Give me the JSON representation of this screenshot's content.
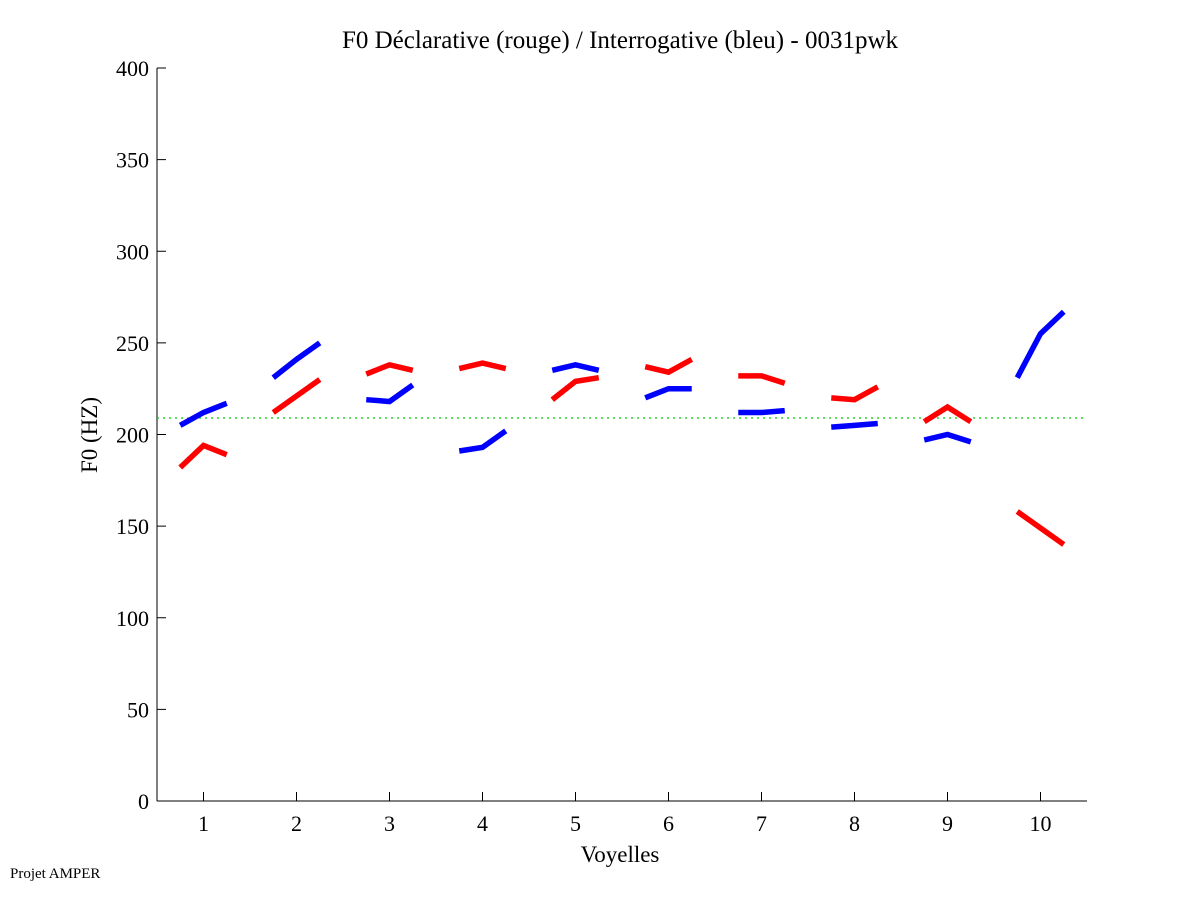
{
  "chart_data": {
    "type": "line",
    "title": "F0 Déclarative (rouge) / Interrogative (bleu) - 0031pwk",
    "xlabel": "Voyelles",
    "ylabel": "F0 (HZ)",
    "xlim": [
      0.5,
      10.5
    ],
    "ylim": [
      0,
      400
    ],
    "xticks": [
      "1",
      "2",
      "3",
      "4",
      "5",
      "6",
      "7",
      "8",
      "9",
      "10"
    ],
    "yticks": [
      "0",
      "50",
      "100",
      "150",
      "200",
      "250",
      "300",
      "350",
      "400"
    ],
    "grid": false,
    "point_offsets": [
      -0.25,
      0,
      0.25
    ],
    "reference_line": {
      "value": 209,
      "color": "#00cc00",
      "style": "dotted"
    },
    "series": [
      {
        "name": "Déclarative (rouge)",
        "color": "#ff0000",
        "segments": [
          [
            182,
            194,
            189
          ],
          [
            212,
            221,
            230
          ],
          [
            233,
            238,
            235
          ],
          [
            236,
            239,
            236
          ],
          [
            219,
            229,
            231
          ],
          [
            237,
            234,
            241
          ],
          [
            232,
            232,
            228
          ],
          [
            220,
            219,
            226
          ],
          [
            207,
            215,
            207
          ],
          [
            158,
            149,
            140
          ]
        ]
      },
      {
        "name": "Interrogative (bleu)",
        "color": "#0000ff",
        "segments": [
          [
            205,
            212,
            217
          ],
          [
            231,
            241,
            250
          ],
          [
            219,
            218,
            227
          ],
          [
            191,
            193,
            202
          ],
          [
            235,
            238,
            235
          ],
          [
            220,
            225,
            225
          ],
          [
            212,
            212,
            213
          ],
          [
            204,
            205,
            206
          ],
          [
            197,
            200,
            196
          ],
          [
            231,
            255,
            267
          ]
        ]
      }
    ]
  },
  "footer": "Projet AMPER"
}
